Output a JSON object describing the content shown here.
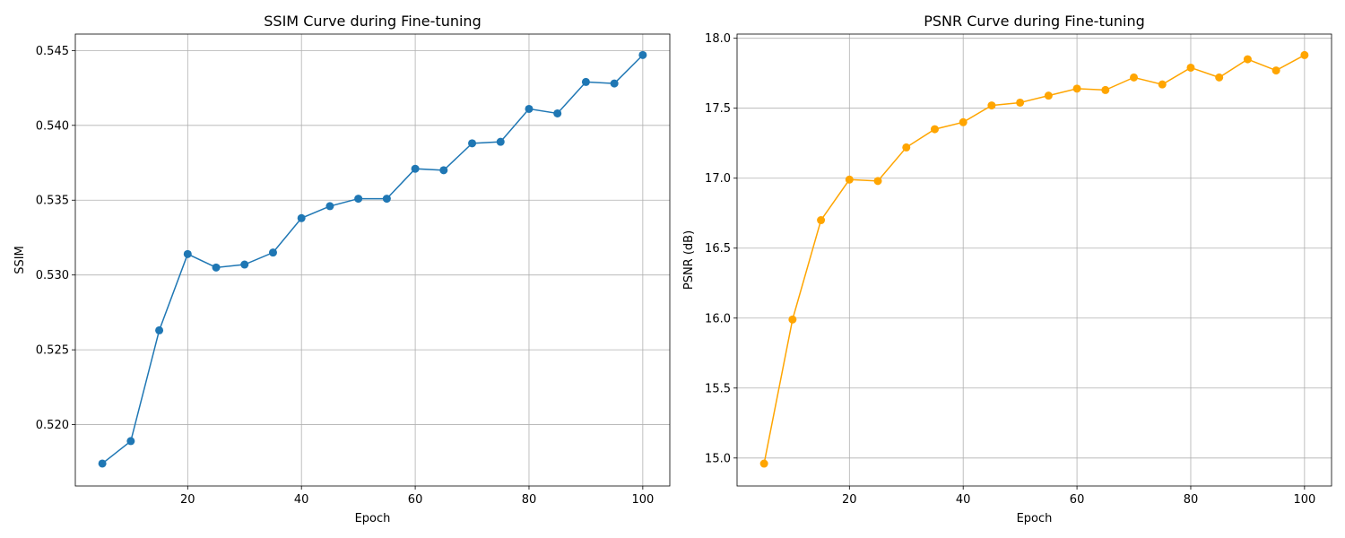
{
  "chart_data": [
    {
      "type": "line",
      "title": "SSIM Curve during Fine-tuning",
      "xlabel": "Epoch",
      "ylabel": "SSIM",
      "grid": true,
      "color": "#1f77b4",
      "marker": "circle",
      "xlim": [
        0.25,
        104.75
      ],
      "ylim": [
        0.5159,
        0.5461
      ],
      "x_ticks": [
        20,
        40,
        60,
        80,
        100
      ],
      "x_tick_labels": [
        "20",
        "40",
        "60",
        "80",
        "100"
      ],
      "y_ticks": [
        0.52,
        0.525,
        0.53,
        0.535,
        0.54,
        0.545
      ],
      "y_tick_labels": [
        "0.520",
        "0.525",
        "0.530",
        "0.535",
        "0.540",
        "0.545"
      ],
      "series": [
        {
          "name": "SSIM",
          "x": [
            5,
            10,
            15,
            20,
            25,
            30,
            35,
            40,
            45,
            50,
            55,
            60,
            65,
            70,
            75,
            80,
            85,
            90,
            95,
            100
          ],
          "values": [
            0.5174,
            0.5189,
            0.5263,
            0.5314,
            0.5305,
            0.5307,
            0.5315,
            0.5338,
            0.5346,
            0.5351,
            0.5351,
            0.5371,
            0.537,
            0.5388,
            0.5389,
            0.5411,
            0.5408,
            0.5429,
            0.5428,
            0.5447
          ]
        }
      ]
    },
    {
      "type": "line",
      "title": "PSNR Curve during Fine-tuning",
      "xlabel": "Epoch",
      "ylabel": "PSNR (dB)",
      "grid": true,
      "color": "#ffa500",
      "marker": "circle",
      "xlim": [
        0.25,
        104.75
      ],
      "ylim": [
        14.8,
        18.03
      ],
      "x_ticks": [
        20,
        40,
        60,
        80,
        100
      ],
      "x_tick_labels": [
        "20",
        "40",
        "60",
        "80",
        "100"
      ],
      "y_ticks": [
        15.0,
        15.5,
        16.0,
        16.5,
        17.0,
        17.5,
        18.0
      ],
      "y_tick_labels": [
        "15.0",
        "15.5",
        "16.0",
        "16.5",
        "17.0",
        "17.5",
        "18.0"
      ],
      "series": [
        {
          "name": "PSNR",
          "x": [
            5,
            10,
            15,
            20,
            25,
            30,
            35,
            40,
            45,
            50,
            55,
            60,
            65,
            70,
            75,
            80,
            85,
            90,
            95,
            100
          ],
          "values": [
            14.96,
            15.99,
            16.7,
            16.99,
            16.98,
            17.22,
            17.35,
            17.4,
            17.52,
            17.54,
            17.59,
            17.64,
            17.63,
            17.72,
            17.67,
            17.79,
            17.72,
            17.85,
            17.77,
            17.88
          ]
        }
      ]
    }
  ]
}
